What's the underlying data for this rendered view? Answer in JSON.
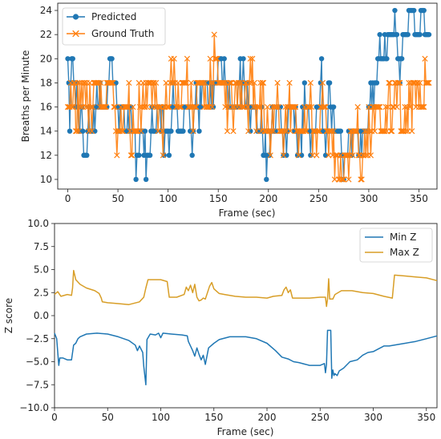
{
  "chart_data": [
    {
      "type": "line",
      "xlabel": "Frame (sec)",
      "ylabel": "Breaths per Minute",
      "xlim": [
        -10,
        368
      ],
      "ylim": [
        9.2,
        24.6
      ],
      "xticks": [
        0,
        50,
        100,
        150,
        200,
        250,
        300,
        350
      ],
      "yticks": [
        10,
        12,
        14,
        16,
        18,
        20,
        22,
        24
      ],
      "legend": "top-left",
      "grid": false,
      "series": [
        {
          "name": "Predicted",
          "color": "#1f77b4",
          "marker": "circle",
          "breakpoints": [
            [
              0,
              18
            ],
            [
              2,
              16
            ],
            [
              4,
              20
            ],
            [
              6,
              18
            ],
            [
              10,
              16
            ],
            [
              13,
              14
            ],
            [
              16,
              12
            ],
            [
              20,
              14
            ],
            [
              28,
              16
            ],
            [
              40,
              18
            ],
            [
              50,
              16
            ],
            [
              56,
              14
            ],
            [
              60,
              16
            ],
            [
              64,
              14
            ],
            [
              68,
              12
            ],
            [
              72,
              14
            ],
            [
              78,
              12
            ],
            [
              84,
              14
            ],
            [
              90,
              16
            ],
            [
              96,
              14
            ],
            [
              104,
              16
            ],
            [
              110,
              14
            ],
            [
              116,
              16
            ],
            [
              122,
              14
            ],
            [
              126,
              16
            ],
            [
              132,
              18
            ],
            [
              140,
              16
            ],
            [
              146,
              18
            ],
            [
              150,
              20
            ],
            [
              154,
              18
            ],
            [
              160,
              16
            ],
            [
              170,
              18
            ],
            [
              178,
              16
            ],
            [
              190,
              14
            ],
            [
              196,
              12
            ],
            [
              202,
              14
            ],
            [
              208,
              16
            ],
            [
              214,
              14
            ],
            [
              220,
              16
            ],
            [
              226,
              14
            ],
            [
              234,
              16
            ],
            [
              242,
              14
            ],
            [
              248,
              16
            ],
            [
              252,
              18
            ],
            [
              254,
              14
            ],
            [
              260,
              16
            ],
            [
              266,
              14
            ],
            [
              274,
              12
            ],
            [
              280,
              14
            ],
            [
              290,
              12
            ],
            [
              296,
              14
            ],
            [
              300,
              16
            ],
            [
              304,
              18
            ],
            [
              310,
              20
            ],
            [
              320,
              22
            ],
            [
              328,
              20
            ],
            [
              334,
              22
            ],
            [
              340,
              24
            ],
            [
              346,
              22
            ],
            [
              352,
              24
            ],
            [
              356,
              22
            ],
            [
              360,
              22
            ]
          ],
          "noise": 2,
          "noise_prob": 0.22
        },
        {
          "name": "Ground Truth",
          "color": "#ff7f0e",
          "marker": "x",
          "breakpoints": [
            [
              0,
              16
            ],
            [
              2,
              18
            ],
            [
              8,
              16
            ],
            [
              14,
              18
            ],
            [
              20,
              16
            ],
            [
              26,
              18
            ],
            [
              32,
              16
            ],
            [
              38,
              18
            ],
            [
              44,
              16
            ],
            [
              48,
              14
            ],
            [
              56,
              16
            ],
            [
              62,
              14
            ],
            [
              70,
              16
            ],
            [
              78,
              18
            ],
            [
              84,
              16
            ],
            [
              90,
              14
            ],
            [
              96,
              16
            ],
            [
              102,
              18
            ],
            [
              108,
              16
            ],
            [
              114,
              18
            ],
            [
              120,
              16
            ],
            [
              128,
              18
            ],
            [
              136,
              16
            ],
            [
              142,
              18
            ],
            [
              146,
              20
            ],
            [
              150,
              18
            ],
            [
              158,
              16
            ],
            [
              166,
              18
            ],
            [
              174,
              16
            ],
            [
              182,
              18
            ],
            [
              188,
              16
            ],
            [
              196,
              14
            ],
            [
              204,
              16
            ],
            [
              212,
              14
            ],
            [
              220,
              16
            ],
            [
              228,
              14
            ],
            [
              236,
              16
            ],
            [
              244,
              14
            ],
            [
              252,
              16
            ],
            [
              258,
              14
            ],
            [
              264,
              12
            ],
            [
              270,
              10
            ],
            [
              276,
              12
            ],
            [
              282,
              14
            ],
            [
              290,
              12
            ],
            [
              296,
              14
            ],
            [
              304,
              16
            ],
            [
              312,
              14
            ],
            [
              320,
              16
            ],
            [
              326,
              18
            ],
            [
              332,
              14
            ],
            [
              338,
              16
            ],
            [
              344,
              18
            ],
            [
              350,
              16
            ],
            [
              356,
              18
            ],
            [
              360,
              18
            ]
          ],
          "noise": 2,
          "noise_prob": 0.3
        }
      ]
    },
    {
      "type": "line",
      "xlabel": "Frame (sec)",
      "ylabel": "Z score",
      "xlim": [
        0,
        360
      ],
      "ylim": [
        -10,
        10
      ],
      "xticks": [
        0,
        50,
        100,
        150,
        200,
        250,
        300,
        350
      ],
      "yticks": [
        -10.0,
        -7.5,
        -5.0,
        -2.5,
        0.0,
        2.5,
        5.0,
        7.5,
        10.0
      ],
      "legend": "top-right",
      "grid": false,
      "series": [
        {
          "name": "Min Z",
          "color": "#1f77b4",
          "points": [
            [
              0,
              -1.9
            ],
            [
              2,
              -2.5
            ],
            [
              4,
              -5.4
            ],
            [
              5,
              -4.6
            ],
            [
              8,
              -4.6
            ],
            [
              12,
              -4.8
            ],
            [
              16,
              -4.8
            ],
            [
              18,
              -3.2
            ],
            [
              20,
              -3.0
            ],
            [
              22,
              -2.5
            ],
            [
              24,
              -2.3
            ],
            [
              30,
              -2.0
            ],
            [
              40,
              -1.9
            ],
            [
              50,
              -2.0
            ],
            [
              60,
              -2.3
            ],
            [
              70,
              -2.7
            ],
            [
              76,
              -3.2
            ],
            [
              78,
              -3.8
            ],
            [
              80,
              -3.3
            ],
            [
              83,
              -4.0
            ],
            [
              84,
              -5.5
            ],
            [
              86,
              -7.5
            ],
            [
              87,
              -2.6
            ],
            [
              90,
              -2.0
            ],
            [
              95,
              -2.1
            ],
            [
              98,
              -1.9
            ],
            [
              100,
              -2.4
            ],
            [
              102,
              -1.9
            ],
            [
              110,
              -2.0
            ],
            [
              120,
              -2.1
            ],
            [
              125,
              -2.2
            ],
            [
              126,
              -2.8
            ],
            [
              128,
              -3.3
            ],
            [
              130,
              -3.8
            ],
            [
              132,
              -4.4
            ],
            [
              134,
              -3.5
            ],
            [
              136,
              -4.2
            ],
            [
              138,
              -4.8
            ],
            [
              140,
              -4.3
            ],
            [
              142,
              -5.3
            ],
            [
              145,
              -3.5
            ],
            [
              150,
              -3.0
            ],
            [
              155,
              -2.6
            ],
            [
              165,
              -2.3
            ],
            [
              180,
              -2.3
            ],
            [
              190,
              -2.5
            ],
            [
              200,
              -3.0
            ],
            [
              208,
              -3.8
            ],
            [
              214,
              -4.5
            ],
            [
              220,
              -4.7
            ],
            [
              225,
              -5.0
            ],
            [
              230,
              -5.1
            ],
            [
              240,
              -5.4
            ],
            [
              250,
              -5.4
            ],
            [
              254,
              -5.2
            ],
            [
              255,
              -6.2
            ],
            [
              256,
              -5.3
            ],
            [
              257,
              -1.6
            ],
            [
              260,
              -1.6
            ],
            [
              261,
              -6.8
            ],
            [
              262,
              -5.9
            ],
            [
              263,
              -6.5
            ],
            [
              264,
              -6.3
            ],
            [
              266,
              -6.5
            ],
            [
              268,
              -6.0
            ],
            [
              272,
              -5.7
            ],
            [
              278,
              -5.0
            ],
            [
              285,
              -4.8
            ],
            [
              290,
              -4.3
            ],
            [
              295,
              -4.0
            ],
            [
              300,
              -3.9
            ],
            [
              305,
              -3.6
            ],
            [
              310,
              -3.3
            ],
            [
              315,
              -3.3
            ],
            [
              320,
              -3.2
            ],
            [
              330,
              -3.0
            ],
            [
              340,
              -2.8
            ],
            [
              350,
              -2.5
            ],
            [
              360,
              -2.2
            ]
          ]
        },
        {
          "name": "Max Z",
          "color": "#d89e27",
          "points": [
            [
              0,
              2.3
            ],
            [
              3,
              2.6
            ],
            [
              6,
              2.1
            ],
            [
              12,
              2.3
            ],
            [
              16,
              2.2
            ],
            [
              17,
              3.0
            ],
            [
              18,
              4.9
            ],
            [
              20,
              3.9
            ],
            [
              24,
              3.4
            ],
            [
              30,
              3.0
            ],
            [
              38,
              2.7
            ],
            [
              42,
              2.4
            ],
            [
              44,
              1.9
            ],
            [
              45,
              1.5
            ],
            [
              50,
              1.4
            ],
            [
              60,
              1.3
            ],
            [
              70,
              1.2
            ],
            [
              80,
              1.5
            ],
            [
              84,
              2.0
            ],
            [
              86,
              3.0
            ],
            [
              88,
              3.9
            ],
            [
              100,
              3.9
            ],
            [
              106,
              3.7
            ],
            [
              108,
              2.0
            ],
            [
              115,
              2.0
            ],
            [
              122,
              2.3
            ],
            [
              124,
              3.1
            ],
            [
              126,
              2.7
            ],
            [
              128,
              3.3
            ],
            [
              130,
              2.5
            ],
            [
              132,
              3.4
            ],
            [
              134,
              2.0
            ],
            [
              136,
              1.6
            ],
            [
              138,
              1.7
            ],
            [
              140,
              1.9
            ],
            [
              142,
              1.8
            ],
            [
              146,
              3.2
            ],
            [
              148,
              3.6
            ],
            [
              150,
              2.9
            ],
            [
              155,
              2.4
            ],
            [
              160,
              2.3
            ],
            [
              170,
              2.1
            ],
            [
              180,
              2.0
            ],
            [
              190,
              2.0
            ],
            [
              200,
              1.9
            ],
            [
              206,
              2.1
            ],
            [
              214,
              2.2
            ],
            [
              216,
              2.8
            ],
            [
              218,
              3.1
            ],
            [
              220,
              2.5
            ],
            [
              222,
              2.8
            ],
            [
              224,
              1.9
            ],
            [
              240,
              1.9
            ],
            [
              250,
              2.0
            ],
            [
              255,
              2.0
            ],
            [
              256,
              1.0
            ],
            [
              257,
              1.8
            ],
            [
              258,
              4.0
            ],
            [
              259,
              1.8
            ],
            [
              262,
              1.8
            ],
            [
              264,
              2.3
            ],
            [
              270,
              2.7
            ],
            [
              280,
              2.7
            ],
            [
              290,
              2.5
            ],
            [
              300,
              2.4
            ],
            [
              310,
              2.1
            ],
            [
              318,
              1.9
            ],
            [
              320,
              4.4
            ],
            [
              330,
              4.3
            ],
            [
              340,
              4.2
            ],
            [
              350,
              4.1
            ],
            [
              360,
              3.8
            ]
          ]
        }
      ]
    }
  ]
}
